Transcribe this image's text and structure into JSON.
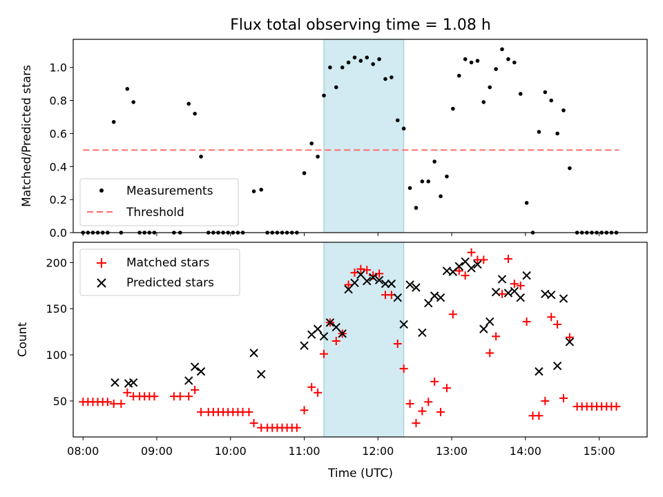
{
  "chart_data": [
    {
      "type": "scatter",
      "title": "Flux total observing time = 1.08 h",
      "xlabel": "",
      "ylabel": "Matched/Predicted stars",
      "ylim": [
        0,
        1.17
      ],
      "yticks": [
        "0.0",
        "0.2",
        "0.4",
        "0.6",
        "0.8",
        "1.0"
      ],
      "xlim": [
        "07:52",
        "15:39"
      ],
      "legend_position": "lower-left",
      "highlight_band": {
        "start": "11:16",
        "end": "12:21",
        "color": "#add8e6"
      },
      "threshold": {
        "name": "Threshold",
        "value": 0.5,
        "from": "08:00",
        "to": "15:16",
        "color": "#ff0000"
      },
      "series": [
        {
          "name": "Measurements",
          "color": "#000000",
          "points": [
            [
              "08:00",
              0
            ],
            [
              "08:04",
              0
            ],
            [
              "08:08",
              0
            ],
            [
              "08:12",
              0
            ],
            [
              "08:16",
              0
            ],
            [
              "08:20",
              0
            ],
            [
              "08:25",
              0.67
            ],
            [
              "08:31",
              0
            ],
            [
              "08:36",
              0.87
            ],
            [
              "08:41",
              0.79
            ],
            [
              "08:46",
              0
            ],
            [
              "08:50",
              0
            ],
            [
              "08:54",
              0
            ],
            [
              "08:58",
              0
            ],
            [
              "09:14",
              0
            ],
            [
              "09:19",
              0
            ],
            [
              "09:26",
              0.78
            ],
            [
              "09:31",
              0.72
            ],
            [
              "09:36",
              0.46
            ],
            [
              "09:42",
              0
            ],
            [
              "09:46",
              0
            ],
            [
              "09:50",
              0
            ],
            [
              "09:54",
              0
            ],
            [
              "09:58",
              0
            ],
            [
              "10:02",
              0
            ],
            [
              "10:06",
              0
            ],
            [
              "10:10",
              0
            ],
            [
              "10:19",
              0.25
            ],
            [
              "10:25",
              0.26
            ],
            [
              "10:30",
              0
            ],
            [
              "10:34",
              0
            ],
            [
              "10:38",
              0
            ],
            [
              "10:42",
              0
            ],
            [
              "10:46",
              0
            ],
            [
              "10:50",
              0
            ],
            [
              "10:54",
              0
            ],
            [
              "11:00",
              0.36
            ],
            [
              "11:06",
              0.54
            ],
            [
              "11:11",
              0.46
            ],
            [
              "11:16",
              0.83
            ],
            [
              "11:21",
              1.0
            ],
            [
              "11:26",
              0.88
            ],
            [
              "11:31",
              1.0
            ],
            [
              "11:36",
              1.03
            ],
            [
              "11:41",
              1.06
            ],
            [
              "11:46",
              1.04
            ],
            [
              "11:51",
              1.06
            ],
            [
              "11:56",
              1.02
            ],
            [
              "12:01",
              1.05
            ],
            [
              "12:06",
              0.93
            ],
            [
              "12:11",
              0.94
            ],
            [
              "12:16",
              0.68
            ],
            [
              "12:21",
              0.63
            ],
            [
              "12:26",
              0.27
            ],
            [
              "12:31",
              0.15
            ],
            [
              "12:36",
              0.31
            ],
            [
              "12:41",
              0.31
            ],
            [
              "12:46",
              0.43
            ],
            [
              "12:51",
              0.22
            ],
            [
              "12:56",
              0.34
            ],
            [
              "13:01",
              0.75
            ],
            [
              "13:06",
              0.95
            ],
            [
              "13:11",
              1.05
            ],
            [
              "13:16",
              1.03
            ],
            [
              "13:21",
              1.04
            ],
            [
              "13:26",
              0.79
            ],
            [
              "13:31",
              0.88
            ],
            [
              "13:36",
              0.99
            ],
            [
              "13:41",
              1.11
            ],
            [
              "13:46",
              1.05
            ],
            [
              "13:51",
              1.03
            ],
            [
              "13:56",
              0.84
            ],
            [
              "14:01",
              0.18
            ],
            [
              "14:06",
              0
            ],
            [
              "14:11",
              0.61
            ],
            [
              "14:16",
              0.85
            ],
            [
              "14:21",
              0.8
            ],
            [
              "14:26",
              0.6
            ],
            [
              "14:31",
              0.74
            ],
            [
              "14:36",
              0.39
            ],
            [
              "14:42",
              0
            ],
            [
              "14:46",
              0
            ],
            [
              "14:50",
              0
            ],
            [
              "14:54",
              0
            ],
            [
              "14:58",
              0
            ],
            [
              "15:02",
              0
            ],
            [
              "15:06",
              0
            ],
            [
              "15:10",
              0
            ],
            [
              "15:14",
              0
            ]
          ]
        }
      ]
    },
    {
      "type": "scatter",
      "title": "",
      "xlabel": "Time (UTC)",
      "ylabel": "Count",
      "ylim": [
        11,
        222
      ],
      "yticks": [
        "50",
        "100",
        "150",
        "200"
      ],
      "xlim": [
        "07:52",
        "15:39"
      ],
      "xticks": [
        "08:00",
        "09:00",
        "10:00",
        "11:00",
        "12:00",
        "13:00",
        "14:00",
        "15:00"
      ],
      "legend_position": "upper-left",
      "highlight_band": {
        "start": "11:16",
        "end": "12:21",
        "color": "#add8e6"
      },
      "series": [
        {
          "name": "Matched stars",
          "marker": "plus",
          "color": "#ff0000",
          "points": [
            [
              "08:00",
              49
            ],
            [
              "08:04",
              49
            ],
            [
              "08:08",
              49
            ],
            [
              "08:12",
              49
            ],
            [
              "08:16",
              49
            ],
            [
              "08:20",
              49
            ],
            [
              "08:25",
              47
            ],
            [
              "08:31",
              47
            ],
            [
              "08:36",
              59
            ],
            [
              "08:41",
              55
            ],
            [
              "08:46",
              55
            ],
            [
              "08:50",
              55
            ],
            [
              "08:54",
              55
            ],
            [
              "08:58",
              55
            ],
            [
              "09:14",
              55
            ],
            [
              "09:19",
              55
            ],
            [
              "09:26",
              55
            ],
            [
              "09:31",
              62
            ],
            [
              "09:36",
              38
            ],
            [
              "09:42",
              38
            ],
            [
              "09:46",
              38
            ],
            [
              "09:50",
              38
            ],
            [
              "09:54",
              38
            ],
            [
              "09:58",
              38
            ],
            [
              "10:02",
              38
            ],
            [
              "10:06",
              38
            ],
            [
              "10:10",
              38
            ],
            [
              "10:15",
              38
            ],
            [
              "10:19",
              26
            ],
            [
              "10:25",
              21
            ],
            [
              "10:30",
              21
            ],
            [
              "10:34",
              21
            ],
            [
              "10:38",
              21
            ],
            [
              "10:42",
              21
            ],
            [
              "10:46",
              21
            ],
            [
              "10:50",
              21
            ],
            [
              "10:54",
              21
            ],
            [
              "11:00",
              40
            ],
            [
              "11:06",
              65
            ],
            [
              "11:11",
              59
            ],
            [
              "11:16",
              101
            ],
            [
              "11:21",
              135
            ],
            [
              "11:26",
              115
            ],
            [
              "11:31",
              123
            ],
            [
              "11:36",
              176
            ],
            [
              "11:41",
              189
            ],
            [
              "11:46",
              193
            ],
            [
              "11:51",
              192
            ],
            [
              "11:56",
              186
            ],
            [
              "12:01",
              188
            ],
            [
              "12:06",
              165
            ],
            [
              "12:11",
              165
            ],
            [
              "12:16",
              112
            ],
            [
              "12:21",
              85
            ],
            [
              "12:26",
              47
            ],
            [
              "12:31",
              26
            ],
            [
              "12:36",
              39
            ],
            [
              "12:41",
              49
            ],
            [
              "12:46",
              71
            ],
            [
              "12:51",
              38
            ],
            [
              "12:56",
              64
            ],
            [
              "13:01",
              144
            ],
            [
              "13:06",
              191
            ],
            [
              "13:11",
              186
            ],
            [
              "13:16",
              211
            ],
            [
              "13:21",
              203
            ],
            [
              "13:26",
              203
            ],
            [
              "13:31",
              102
            ],
            [
              "13:36",
              120
            ],
            [
              "13:41",
              166
            ],
            [
              "13:46",
              204
            ],
            [
              "13:51",
              177
            ],
            [
              "13:56",
              175
            ],
            [
              "14:01",
              136
            ],
            [
              "14:06",
              34
            ],
            [
              "14:11",
              34
            ],
            [
              "14:16",
              50
            ],
            [
              "14:21",
              141
            ],
            [
              "14:26",
              133
            ],
            [
              "14:31",
              53
            ],
            [
              "14:36",
              119
            ],
            [
              "14:42",
              44
            ],
            [
              "14:46",
              44
            ],
            [
              "14:50",
              44
            ],
            [
              "14:54",
              44
            ],
            [
              "14:58",
              44
            ],
            [
              "15:02",
              44
            ],
            [
              "15:06",
              44
            ],
            [
              "15:10",
              44
            ],
            [
              "15:14",
              44
            ]
          ]
        },
        {
          "name": "Predicted stars",
          "marker": "x",
          "color": "#000000",
          "points": [
            [
              "08:26",
              70
            ],
            [
              "08:37",
              69
            ],
            [
              "08:41",
              70
            ],
            [
              "09:26",
              72
            ],
            [
              "09:31",
              87
            ],
            [
              "09:36",
              82
            ],
            [
              "10:19",
              102
            ],
            [
              "10:25",
              79
            ],
            [
              "11:00",
              110
            ],
            [
              "11:06",
              122
            ],
            [
              "11:11",
              128
            ],
            [
              "11:16",
              120
            ],
            [
              "11:21",
              135
            ],
            [
              "11:26",
              130
            ],
            [
              "11:31",
              123
            ],
            [
              "11:36",
              171
            ],
            [
              "11:41",
              178
            ],
            [
              "11:46",
              187
            ],
            [
              "11:51",
              180
            ],
            [
              "11:56",
              184
            ],
            [
              "12:01",
              181
            ],
            [
              "12:06",
              177
            ],
            [
              "12:11",
              177
            ],
            [
              "12:16",
              162
            ],
            [
              "12:21",
              133
            ],
            [
              "12:26",
              176
            ],
            [
              "12:31",
              173
            ],
            [
              "12:36",
              124
            ],
            [
              "12:41",
              156
            ],
            [
              "12:46",
              164
            ],
            [
              "12:51",
              162
            ],
            [
              "12:56",
              191
            ],
            [
              "13:01",
              190
            ],
            [
              "13:06",
              196
            ],
            [
              "13:11",
              201
            ],
            [
              "13:16",
              194
            ],
            [
              "13:21",
              198
            ],
            [
              "13:26",
              128
            ],
            [
              "13:31",
              136
            ],
            [
              "13:36",
              168
            ],
            [
              "13:41",
              182
            ],
            [
              "13:46",
              167
            ],
            [
              "13:51",
              169
            ],
            [
              "13:56",
              162
            ],
            [
              "14:01",
              186
            ],
            [
              "14:11",
              82
            ],
            [
              "14:16",
              166
            ],
            [
              "14:21",
              165
            ],
            [
              "14:26",
              88
            ],
            [
              "14:31",
              161
            ],
            [
              "14:36",
              114
            ]
          ]
        }
      ]
    }
  ]
}
